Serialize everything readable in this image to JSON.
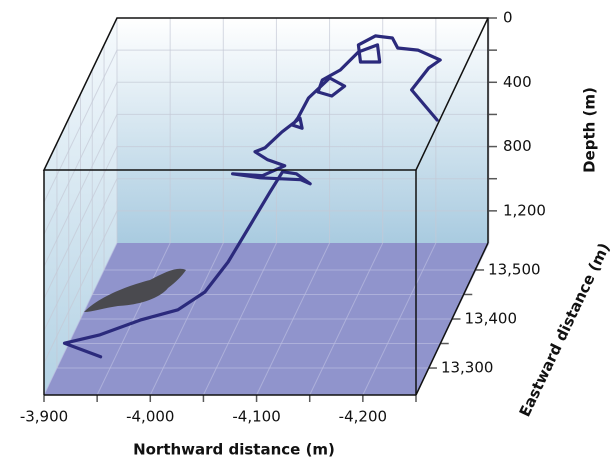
{
  "chart_data": {
    "type": "line3d",
    "xlabel": "Northward distance (m)",
    "ylabel": "Depth (m)",
    "zlabel": "Eastward distance (m)",
    "xlim": [
      -3900,
      -4250
    ],
    "xticks": [
      {
        "value": -3900,
        "label": "-3,900"
      },
      {
        "value": -4000,
        "label": "-4,000"
      },
      {
        "value": -4100,
        "label": "-4,100"
      },
      {
        "value": -4200,
        "label": "-4,200"
      }
    ],
    "xminorticks": [
      -3950,
      -4050,
      -4150,
      -4250
    ],
    "ylim": [
      0,
      1400
    ],
    "yticks": [
      0,
      400,
      800,
      {
        "value": 1200,
        "label": "1,200"
      }
    ],
    "yminorticks": [
      200,
      600,
      1000
    ],
    "zlim": [
      13245,
      13555
    ],
    "zticks": [
      {
        "value": 13300,
        "label": "13,300"
      },
      {
        "value": 13400,
        "label": "13,400"
      },
      {
        "value": 13500,
        "label": "13,500"
      }
    ],
    "zminorticks": [
      13350,
      13450
    ],
    "grid": true,
    "track": {
      "color": "#2b2a7c",
      "north": [
        -4208,
        -4184,
        -4200,
        -4211,
        -4190,
        -4171,
        -4166,
        -4150,
        -4134,
        -4136,
        -4154,
        -4152,
        -4134,
        -4117,
        -4100,
        -4096,
        -4109,
        -4121,
        -4107,
        -4087,
        -4077,
        -4072,
        -4081,
        -4079,
        -4062,
        -4046,
        -4040,
        -4052,
        -4068,
        -4047,
        -4019,
        -4045,
        -4083,
        -4092,
        -4079,
        -4066,
        -4059,
        -4046,
        -4032,
        -4017,
        -3995,
        -3963,
        -3928,
        -3896,
        -3936
      ],
      "east": [
        13524,
        13524,
        13524,
        13524,
        13524,
        13524,
        13524,
        13524,
        13524,
        13524,
        13524,
        13524,
        13524,
        13524,
        13524,
        13524,
        13524,
        13524,
        13524,
        13524,
        13524,
        13524,
        13524,
        13524,
        13524,
        13524,
        13509,
        13509,
        13509,
        13509,
        13509,
        13509,
        13509,
        13509,
        13509,
        13509,
        13487,
        13462,
        13431,
        13400,
        13385,
        13369,
        13357,
        13350,
        13323
      ],
      "depth": [
        540,
        353,
        217,
        167,
        105,
        92,
        30,
        17,
        73,
        179,
        179,
        73,
        117,
        229,
        291,
        366,
        391,
        329,
        279,
        403,
        528,
        572,
        591,
        528,
        615,
        714,
        692,
        742,
        779,
        841,
        829,
        854,
        866,
        891,
        829,
        816,
        875,
        1004,
        1140,
        1232,
        1297,
        1312,
        1367,
        1398,
        1400
      ]
    }
  }
}
